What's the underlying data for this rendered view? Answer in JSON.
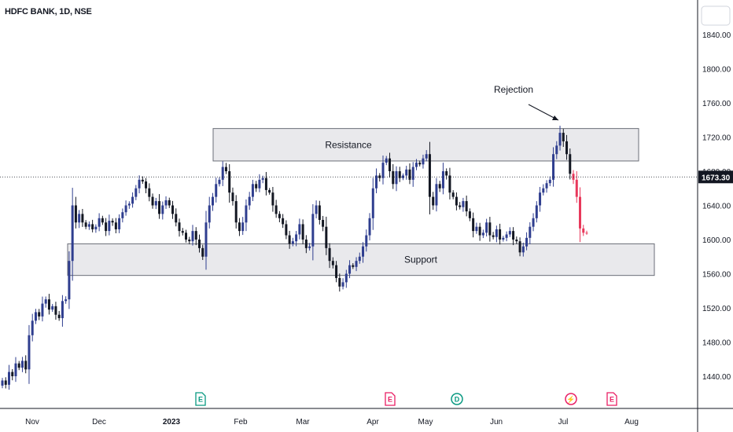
{
  "header": {
    "title": "HDFC BANK, 1D, NSE"
  },
  "colors": {
    "up": "#2f3e8f",
    "down": "#131722",
    "recent_down": "#e8385b",
    "zone_fill": "#e9e9ec",
    "zone_stroke": "#6b6e78",
    "price_tag_bg": "#131722"
  },
  "chart_data": {
    "type": "candlestick",
    "title": "HDFC BANK, 1D, NSE",
    "y_axis": {
      "ticks": [
        "1840.00",
        "1800.00",
        "1760.00",
        "1720.00",
        "1680.00",
        "1640.00",
        "1600.00",
        "1560.00",
        "1520.00",
        "1480.00",
        "1440.00"
      ],
      "ylim": [
        1405,
        1885
      ]
    },
    "x_axis": {
      "ticks": [
        "Nov",
        "Dec",
        "2023",
        "Feb",
        "Mar",
        "Apr",
        "May",
        "Jun",
        "Jul",
        "Aug"
      ]
    },
    "last_price": "1673.30",
    "zones": [
      {
        "name": "Resistance",
        "low": 1692,
        "high": 1730
      },
      {
        "name": "Support",
        "low": 1558,
        "high": 1595
      }
    ],
    "annotations": [
      {
        "text": "Rejection"
      }
    ],
    "events": [
      {
        "letter": "E",
        "type": "earnings",
        "color": "#089981"
      },
      {
        "letter": "E",
        "type": "earnings",
        "color": "#e91e63"
      },
      {
        "letter": "D",
        "type": "dividend",
        "color": "#089981"
      },
      {
        "letter": "⚡",
        "type": "split",
        "color": "#e91e63"
      },
      {
        "letter": "E",
        "type": "earnings",
        "color": "#e91e63"
      }
    ],
    "closes": [
      1435,
      1430,
      1445,
      1440,
      1455,
      1450,
      1458,
      1448,
      1488,
      1505,
      1515,
      1510,
      1525,
      1530,
      1518,
      1522,
      1512,
      1508,
      1528,
      1530,
      1575,
      1640,
      1620,
      1630,
      1620,
      1615,
      1618,
      1612,
      1615,
      1625,
      1620,
      1610,
      1622,
      1620,
      1612,
      1625,
      1632,
      1640,
      1642,
      1650,
      1660,
      1670,
      1668,
      1660,
      1650,
      1640,
      1645,
      1630,
      1640,
      1646,
      1640,
      1630,
      1620,
      1610,
      1608,
      1600,
      1598,
      1610,
      1600,
      1590,
      1580,
      1620,
      1640,
      1650,
      1665,
      1670,
      1685,
      1680,
      1655,
      1645,
      1620,
      1610,
      1620,
      1640,
      1650,
      1665,
      1660,
      1670,
      1672,
      1658,
      1655,
      1640,
      1630,
      1625,
      1618,
      1605,
      1595,
      1598,
      1606,
      1618,
      1600,
      1590,
      1592,
      1630,
      1640,
      1623,
      1615,
      1590,
      1575,
      1570,
      1555,
      1545,
      1550,
      1560,
      1570,
      1568,
      1575,
      1580,
      1592,
      1605,
      1625,
      1660,
      1675,
      1672,
      1690,
      1695,
      1680,
      1665,
      1680,
      1672,
      1675,
      1682,
      1670,
      1685,
      1690,
      1688,
      1695,
      1700,
      1650,
      1640,
      1665,
      1660,
      1680,
      1675,
      1655,
      1650,
      1640,
      1638,
      1645,
      1633,
      1625,
      1610,
      1615,
      1605,
      1608,
      1620,
      1605,
      1603,
      1612,
      1600,
      1602,
      1606,
      1610,
      1600,
      1598,
      1585,
      1592,
      1602,
      1615,
      1625,
      1640,
      1655,
      1660,
      1666,
      1670,
      1700,
      1710,
      1725,
      1715,
      1700,
      1677,
      1670,
      1650,
      1613,
      1608,
      1608
    ]
  }
}
